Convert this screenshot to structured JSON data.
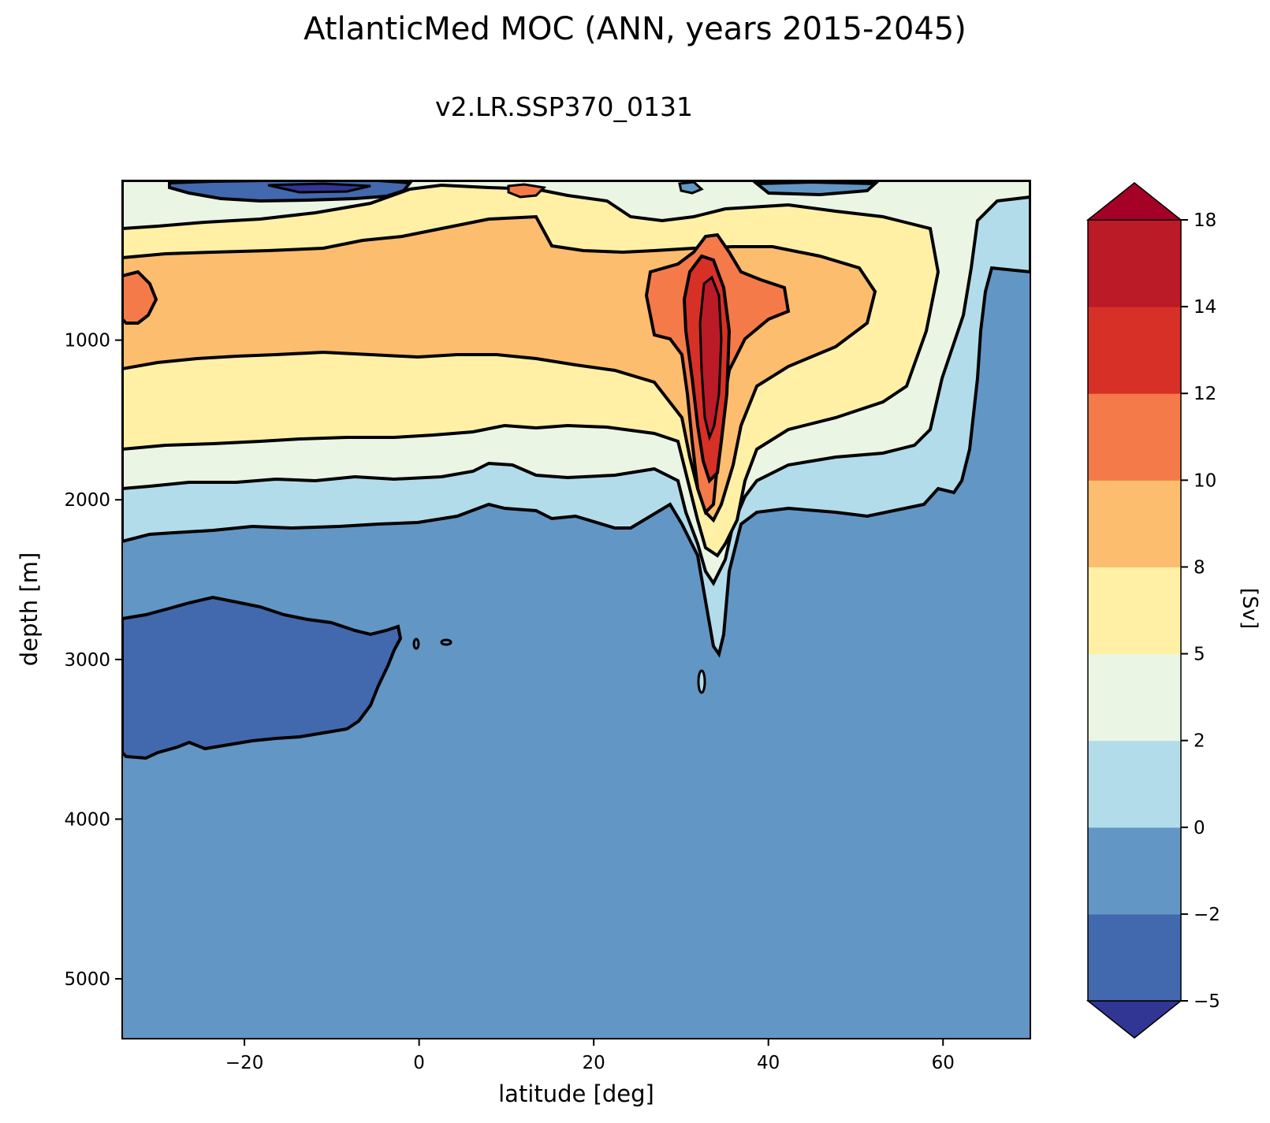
{
  "chart_data": {
    "type": "contourf",
    "title": "AtlanticMed MOC (ANN, years 2015-2045)",
    "subtitle": "v2.LR.SSP370_0131",
    "xlabel": "latitude [deg]",
    "ylabel": "depth [m]",
    "xlim": [
      -34,
      70
    ],
    "ylim": [
      5375,
      0
    ],
    "y_inverted": true,
    "xticks": [
      -20,
      0,
      20,
      40,
      60
    ],
    "xtick_labels": [
      "−20",
      "0",
      "20",
      "40",
      "60"
    ],
    "yticks": [
      1000,
      2000,
      3000,
      4000,
      5000
    ],
    "ytick_labels": [
      "1000",
      "2000",
      "3000",
      "4000",
      "5000"
    ],
    "colorbar": {
      "label": "[Sv]",
      "levels": [
        -5,
        -2,
        0,
        2,
        5,
        8,
        10,
        12,
        14,
        18
      ],
      "tick_labels": [
        "−5",
        "−2",
        "0",
        "2",
        "5",
        "8",
        "10",
        "12",
        "14",
        "18"
      ],
      "colors": [
        "#4269ad",
        "#6296c4",
        "#b3dceb",
        "#eaf5e4",
        "#fff0a6",
        "#fdbd6e",
        "#f57a4a",
        "#d73027",
        "#bb1a27"
      ],
      "under_color": "#313695",
      "over_color": "#a50026",
      "extend": "both"
    },
    "contour_line_color": "#000000",
    "regions": [
      {
        "level": 0,
        "value_range": [
          0,
          2
        ],
        "depth_range": [
          0,
          2250
        ],
        "note": "upper cell shell"
      },
      {
        "level": 2,
        "value_range": [
          2,
          5
        ],
        "depth_range": [
          0,
          1900
        ]
      },
      {
        "level": 5,
        "value_range": [
          5,
          8
        ],
        "depth_range": [
          250,
          1550
        ]
      },
      {
        "level": 8,
        "value_range": [
          8,
          10
        ],
        "depth_range": [
          300,
          1150
        ]
      },
      {
        "level": 10,
        "value_range": [
          10,
          12
        ],
        "lat_range": [
          28,
          41
        ],
        "depth_range": [
          400,
          1000
        ]
      },
      {
        "level": 14,
        "value_range": [
          14,
          18
        ],
        "lat_range": [
          32,
          35
        ],
        "depth_range": [
          550,
          1800
        ]
      },
      {
        "level": -2,
        "value_range": [
          -5,
          -2
        ],
        "lat_range": [
          -34,
          -3
        ],
        "depth_range": [
          2650,
          3650
        ],
        "note": "deep negative cell"
      }
    ]
  }
}
